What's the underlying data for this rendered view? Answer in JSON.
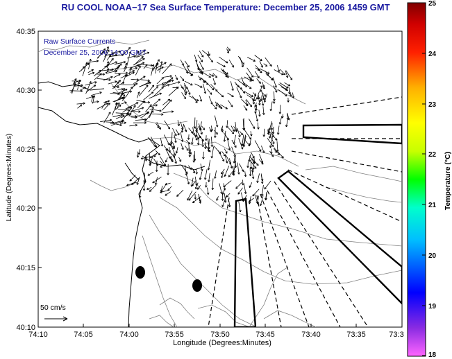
{
  "title": "RU COOL  NOAA−17  Sea Surface Temperature:  December 25, 2006 1459 GMT",
  "legend": {
    "line1": "Raw Surface Currents",
    "line2": "December 25, 2006 14:00 GMT"
  },
  "axes": {
    "ylabel": "Latitude (Degrees:Minutes)",
    "xlabel": "Longitude (Degrees:Minutes)",
    "yticks": [
      "40:35",
      "40:30",
      "40:25",
      "40:20",
      "40:15",
      "40:10"
    ],
    "xticks": [
      "74:10",
      "74:05",
      "74:00",
      "73:55",
      "73:50",
      "73:45",
      "73:40",
      "73:35",
      "73:3"
    ]
  },
  "colorbar": {
    "label": "Temperature (°C)",
    "ticks": [
      "25",
      "24",
      "23",
      "22",
      "21",
      "20",
      "19",
      "18"
    ],
    "range": [
      18,
      25
    ],
    "colors": [
      "#ff66ff",
      "#8a2be2",
      "#0000ff",
      "#00bfff",
      "#00ffcc",
      "#00ff00",
      "#c8ff00",
      "#ffff00",
      "#ffb000",
      "#ff4000",
      "#ff0000",
      "#c00000",
      "#800000"
    ]
  },
  "scale_bar": {
    "label": "50 cm/s"
  },
  "map_colors": {
    "coastline": "#000000",
    "bathymetry": "#808080",
    "arrows": "#000000"
  }
}
